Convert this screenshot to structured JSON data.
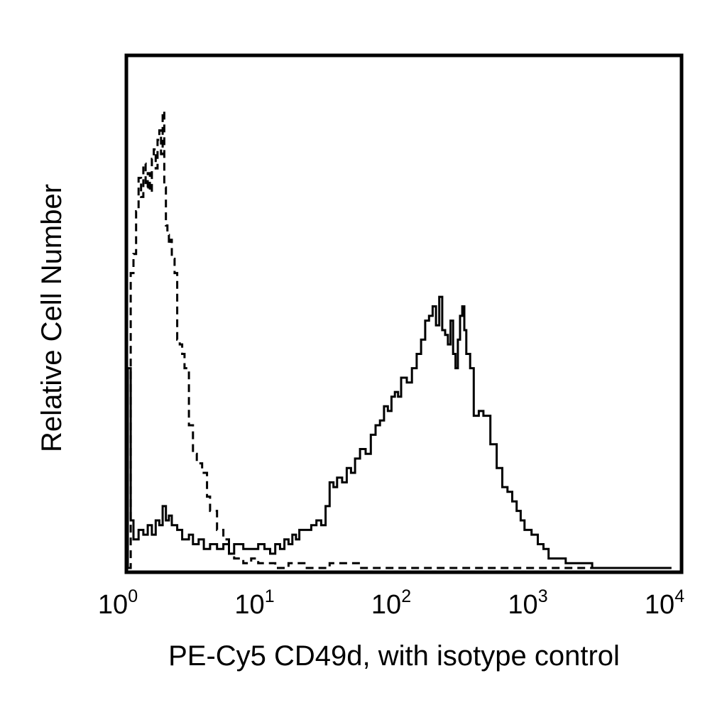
{
  "chart_data": {
    "type": "line",
    "title": "",
    "xlabel": "PE-Cy5 CD49d, with isotype control",
    "ylabel": "Relative Cell Number",
    "x_scale": "log",
    "xlim": [
      1,
      10000
    ],
    "ylim": [
      0,
      100
    ],
    "x_tick_labels": [
      {
        "base": "10",
        "exp": "0"
      },
      {
        "base": "10",
        "exp": "1"
      },
      {
        "base": "10",
        "exp": "2"
      },
      {
        "base": "10",
        "exp": "3"
      },
      {
        "base": "10",
        "exp": "4"
      }
    ],
    "y_ticks_shown": false,
    "grid": false,
    "legend": "none",
    "colors": {
      "line": "#000000",
      "frame": "#000000",
      "background": "#ffffff"
    },
    "series": [
      {
        "style": "solid",
        "points": [
          [
            1.0,
            0
          ],
          [
            1.0,
            42
          ],
          [
            1.05,
            10
          ],
          [
            1.1,
            6
          ],
          [
            1.2,
            8
          ],
          [
            1.3,
            7
          ],
          [
            1.4,
            9
          ],
          [
            1.5,
            7
          ],
          [
            1.6,
            10
          ],
          [
            1.7,
            9
          ],
          [
            1.8,
            13
          ],
          [
            1.9,
            10
          ],
          [
            2.0,
            11
          ],
          [
            2.1,
            9
          ],
          [
            2.3,
            8
          ],
          [
            2.5,
            6
          ],
          [
            2.8,
            7
          ],
          [
            3.0,
            5
          ],
          [
            3.3,
            6
          ],
          [
            3.6,
            4
          ],
          [
            4.0,
            5
          ],
          [
            4.5,
            4
          ],
          [
            5.0,
            5
          ],
          [
            5.5,
            3
          ],
          [
            6.0,
            5
          ],
          [
            7.0,
            4
          ],
          [
            8.0,
            4
          ],
          [
            9.0,
            5
          ],
          [
            10.0,
            4
          ],
          [
            11.0,
            3
          ],
          [
            12.0,
            5
          ],
          [
            13.0,
            4
          ],
          [
            14.0,
            6
          ],
          [
            15.0,
            5
          ],
          [
            16.0,
            7
          ],
          [
            17.0,
            6
          ],
          [
            18.0,
            8
          ],
          [
            20.0,
            8
          ],
          [
            22.0,
            9
          ],
          [
            24.0,
            10
          ],
          [
            26.0,
            9
          ],
          [
            28.0,
            13
          ],
          [
            30.0,
            18
          ],
          [
            32.0,
            17
          ],
          [
            34.0,
            19
          ],
          [
            37.0,
            18
          ],
          [
            40.0,
            21
          ],
          [
            43.0,
            20
          ],
          [
            46.0,
            23
          ],
          [
            50.0,
            25
          ],
          [
            55.0,
            24
          ],
          [
            60.0,
            28
          ],
          [
            65.0,
            30
          ],
          [
            70.0,
            31
          ],
          [
            75.0,
            34
          ],
          [
            80.0,
            33
          ],
          [
            85.0,
            36
          ],
          [
            90.0,
            37
          ],
          [
            95.0,
            36
          ],
          [
            100.0,
            40
          ],
          [
            110.0,
            39
          ],
          [
            120.0,
            42
          ],
          [
            130.0,
            45
          ],
          [
            140.0,
            48
          ],
          [
            150.0,
            52
          ],
          [
            160.0,
            53
          ],
          [
            170.0,
            55
          ],
          [
            180.0,
            51
          ],
          [
            190.0,
            57
          ],
          [
            200.0,
            50
          ],
          [
            210.0,
            49
          ],
          [
            220.0,
            47
          ],
          [
            230.0,
            52
          ],
          [
            240.0,
            45
          ],
          [
            250.0,
            42
          ],
          [
            260.0,
            48
          ],
          [
            270.0,
            53
          ],
          [
            280.0,
            55
          ],
          [
            290.0,
            50
          ],
          [
            300.0,
            45
          ],
          [
            320.0,
            42
          ],
          [
            340.0,
            32
          ],
          [
            370.0,
            33
          ],
          [
            400.0,
            32
          ],
          [
            450.0,
            26
          ],
          [
            500.0,
            21
          ],
          [
            550.0,
            17
          ],
          [
            600.0,
            16
          ],
          [
            650.0,
            14
          ],
          [
            700.0,
            12
          ],
          [
            750.0,
            10
          ],
          [
            800.0,
            8
          ],
          [
            900.0,
            7
          ],
          [
            1000.0,
            5
          ],
          [
            1100.0,
            4
          ],
          [
            1200.0,
            2
          ],
          [
            1400.0,
            2
          ],
          [
            1600.0,
            1
          ],
          [
            1800.0,
            1
          ],
          [
            2000.0,
            1
          ],
          [
            2500.0,
            0
          ],
          [
            3000.0,
            0
          ],
          [
            5000.0,
            0
          ],
          [
            9500.0,
            0
          ]
        ]
      },
      {
        "style": "dashed",
        "points": [
          [
            1.0,
            0
          ],
          [
            1.05,
            62
          ],
          [
            1.1,
            66
          ],
          [
            1.15,
            75
          ],
          [
            1.2,
            82
          ],
          [
            1.25,
            78
          ],
          [
            1.3,
            85
          ],
          [
            1.35,
            80
          ],
          [
            1.4,
            83
          ],
          [
            1.45,
            79
          ],
          [
            1.5,
            86
          ],
          [
            1.55,
            88
          ],
          [
            1.6,
            84
          ],
          [
            1.65,
            90
          ],
          [
            1.7,
            92
          ],
          [
            1.75,
            87
          ],
          [
            1.8,
            96
          ],
          [
            1.85,
            80
          ],
          [
            1.9,
            72
          ],
          [
            1.95,
            70
          ],
          [
            2.0,
            68
          ],
          [
            2.05,
            69
          ],
          [
            2.1,
            65
          ],
          [
            2.2,
            62
          ],
          [
            2.3,
            48
          ],
          [
            2.4,
            47
          ],
          [
            2.5,
            45
          ],
          [
            2.6,
            42
          ],
          [
            2.8,
            30
          ],
          [
            3.0,
            24
          ],
          [
            3.2,
            22
          ],
          [
            3.5,
            20
          ],
          [
            3.8,
            15
          ],
          [
            4.0,
            12
          ],
          [
            4.5,
            8
          ],
          [
            5.0,
            6
          ],
          [
            5.5,
            3
          ],
          [
            6.0,
            2
          ],
          [
            7.0,
            1
          ],
          [
            8.0,
            2
          ],
          [
            9.0,
            1
          ],
          [
            10.0,
            1
          ],
          [
            12.0,
            0
          ],
          [
            15.0,
            1
          ],
          [
            20.0,
            0
          ],
          [
            30.0,
            1
          ],
          [
            50.0,
            0
          ],
          [
            9500.0,
            0
          ]
        ]
      }
    ]
  }
}
